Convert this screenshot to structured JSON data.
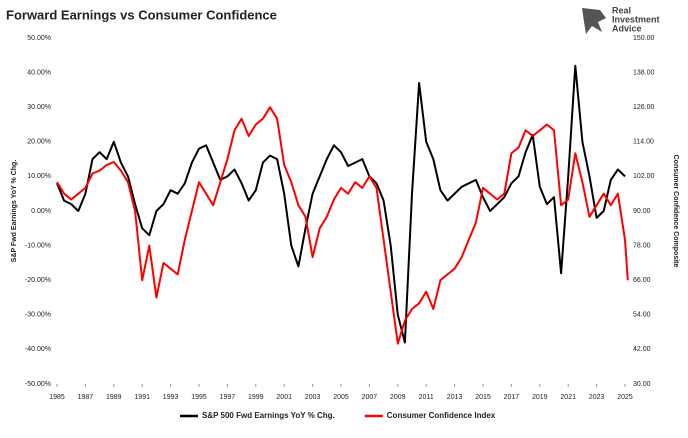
{
  "chart_data": {
    "type": "line",
    "title": "Forward Earnings vs Consumer Confidence",
    "logo": [
      "Real",
      "Investment",
      "Advice"
    ],
    "y_label": "S&P Fwd Earnings YoY % Chg.",
    "y2_label": "Consumer Confidence Composite",
    "legend": "bottom",
    "xlim": [
      1985,
      2025
    ],
    "xticks": [
      1985,
      1987,
      1989,
      1991,
      1993,
      1995,
      1997,
      1999,
      2001,
      2003,
      2005,
      2007,
      2009,
      2011,
      2013,
      2015,
      2017,
      2019,
      2021,
      2023,
      2025
    ],
    "ylim": [
      -50,
      50
    ],
    "yticks": [
      {
        "value": -50,
        "label": "-50.00%"
      },
      {
        "value": -40,
        "label": "-40.00%"
      },
      {
        "value": -30,
        "label": "-30.00%"
      },
      {
        "value": -20,
        "label": "-20.00%"
      },
      {
        "value": -10,
        "label": "-10.00%"
      },
      {
        "value": 0,
        "label": "0.00%"
      },
      {
        "value": 10,
        "label": "10.00%"
      },
      {
        "value": 20,
        "label": "20.00%"
      },
      {
        "value": 30,
        "label": "30.00%"
      },
      {
        "value": 40,
        "label": "40.00%"
      },
      {
        "value": 50,
        "label": "50.00%"
      }
    ],
    "y2lim": [
      30,
      150
    ],
    "y2ticks": [
      {
        "value": 30,
        "label": "30.00"
      },
      {
        "value": 42,
        "label": "42.00"
      },
      {
        "value": 54,
        "label": "54.00"
      },
      {
        "value": 66,
        "label": "66.00"
      },
      {
        "value": 78,
        "label": "78.00"
      },
      {
        "value": 90,
        "label": "90.00"
      },
      {
        "value": 102,
        "label": "102.00"
      },
      {
        "value": 114,
        "label": "114.00"
      },
      {
        "value": 126,
        "label": "126.00"
      },
      {
        "value": 138,
        "label": "138.00"
      },
      {
        "value": 150,
        "label": "150.00"
      }
    ],
    "x": [
      1985,
      1985.5,
      1986,
      1986.5,
      1987,
      1987.5,
      1988,
      1988.5,
      1989,
      1989.5,
      1990,
      1990.5,
      1991,
      1991.5,
      1992,
      1992.5,
      1993,
      1993.5,
      1994,
      1994.5,
      1995,
      1995.5,
      1996,
      1996.5,
      1997,
      1997.5,
      1998,
      1998.5,
      1999,
      1999.5,
      2000,
      2000.5,
      2001,
      2001.5,
      2002,
      2002.5,
      2003,
      2003.5,
      2004,
      2004.5,
      2005,
      2005.5,
      2006,
      2006.5,
      2007,
      2007.5,
      2008,
      2008.5,
      2009,
      2009.5,
      2010,
      2010.5,
      2011,
      2011.5,
      2012,
      2012.5,
      2013,
      2013.5,
      2014,
      2014.5,
      2015,
      2015.5,
      2016,
      2016.5,
      2017,
      2017.5,
      2018,
      2018.5,
      2019,
      2019.5,
      2020,
      2020.5,
      2021,
      2021.5,
      2022,
      2022.5,
      2023,
      2023.5,
      2024,
      2024.5,
      2025,
      2025.2
    ],
    "series": [
      {
        "name": "S&P 500 Fwd Earnings YoY % Chg.",
        "color": "#000000",
        "axis": "y",
        "values": [
          8,
          3,
          2,
          0,
          5,
          15,
          17,
          15,
          20,
          14,
          10,
          2,
          -5,
          -7,
          0,
          2,
          6,
          5,
          8,
          14,
          18,
          19,
          14,
          9,
          10,
          12,
          8,
          3,
          6,
          14,
          16,
          15,
          5,
          -10,
          -16,
          -5,
          5,
          10,
          15,
          19,
          17,
          13,
          14,
          15,
          10,
          8,
          3,
          -10,
          -30,
          -38,
          5,
          37,
          20,
          15,
          6,
          3,
          5,
          7,
          8,
          9,
          4,
          0,
          2,
          4,
          8,
          10,
          17,
          22,
          7,
          2,
          4,
          -18,
          10,
          42,
          20,
          10,
          -2,
          0,
          9,
          12,
          10,
          null
        ]
      },
      {
        "name": "Consumer Confidence Index",
        "color": "#ff0000",
        "axis": "y2",
        "values": [
          100,
          96,
          94,
          96,
          98,
          103,
          104,
          106,
          107,
          104,
          100,
          90,
          66,
          78,
          60,
          72,
          70,
          68,
          80,
          90,
          100,
          96,
          92,
          100,
          108,
          118,
          122,
          116,
          120,
          122,
          126,
          122,
          106,
          100,
          92,
          88,
          74,
          84,
          88,
          94,
          98,
          96,
          100,
          98,
          102,
          98,
          80,
          62,
          44,
          52,
          56,
          58,
          62,
          56,
          66,
          68,
          70,
          74,
          80,
          86,
          98,
          96,
          94,
          96,
          110,
          112,
          118,
          116,
          118,
          120,
          118,
          92,
          94,
          110,
          100,
          88,
          92,
          96,
          92,
          96,
          80,
          66
        ]
      }
    ]
  }
}
